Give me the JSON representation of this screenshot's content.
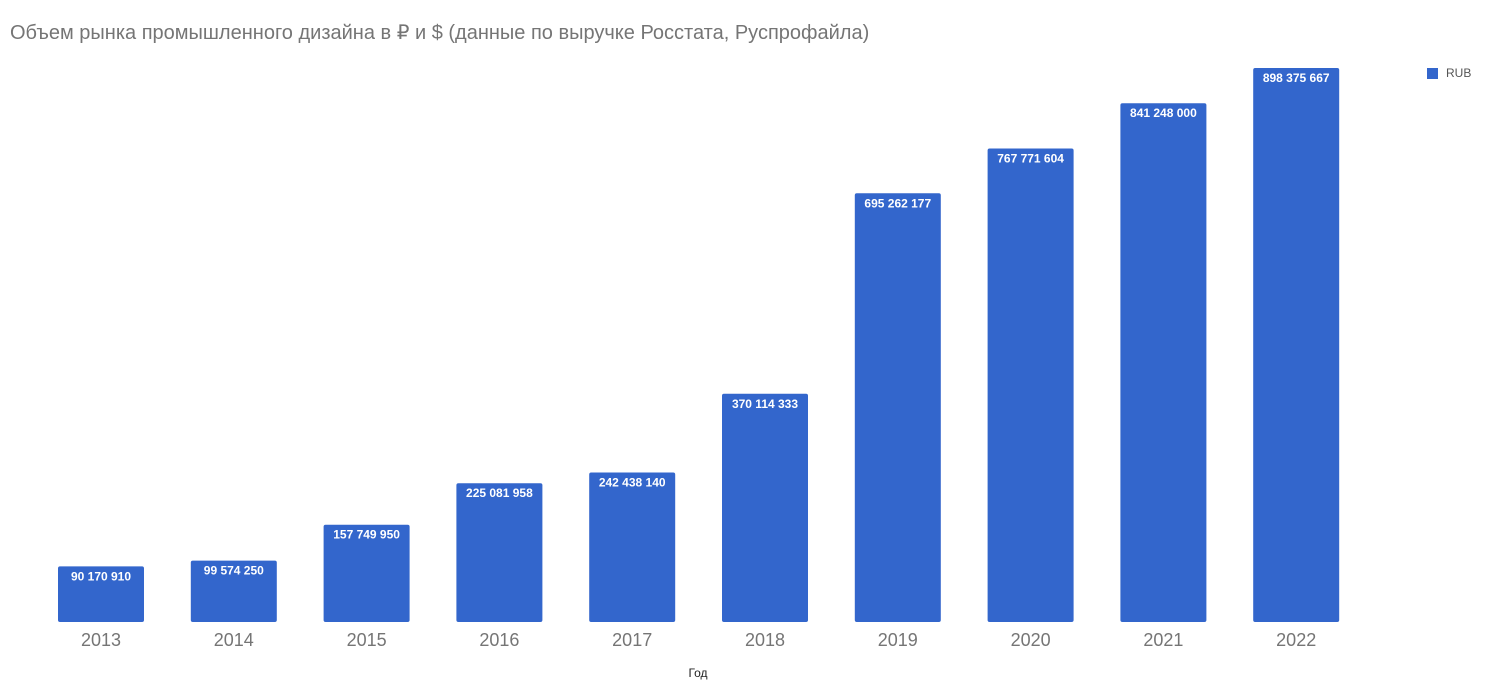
{
  "chart_data": {
    "type": "bar",
    "title": "Объем рынка промышленного дизайна в ₽ и $ (данные по выручке Росстата, Руспрофайла)",
    "xlabel": "Год",
    "ylabel": "",
    "categories": [
      "2013",
      "2014",
      "2015",
      "2016",
      "2017",
      "2018",
      "2019",
      "2020",
      "2021",
      "2022"
    ],
    "series": [
      {
        "name": "RUB",
        "color": "#3366cc",
        "values": [
          90170910,
          99574250,
          157749950,
          225081958,
          242438140,
          370114333,
          695262177,
          767771604,
          841248000,
          898375667
        ],
        "labels": [
          "90 170 910",
          "99 574 250",
          "157 749 950",
          "225 081 958",
          "242 438 140",
          "370 114 333",
          "695 262 177",
          "767 771 604",
          "841 248 000",
          "898 375 667"
        ]
      }
    ],
    "ylim": [
      0,
      898375667
    ],
    "grid": false,
    "legend_position": "top-right"
  }
}
